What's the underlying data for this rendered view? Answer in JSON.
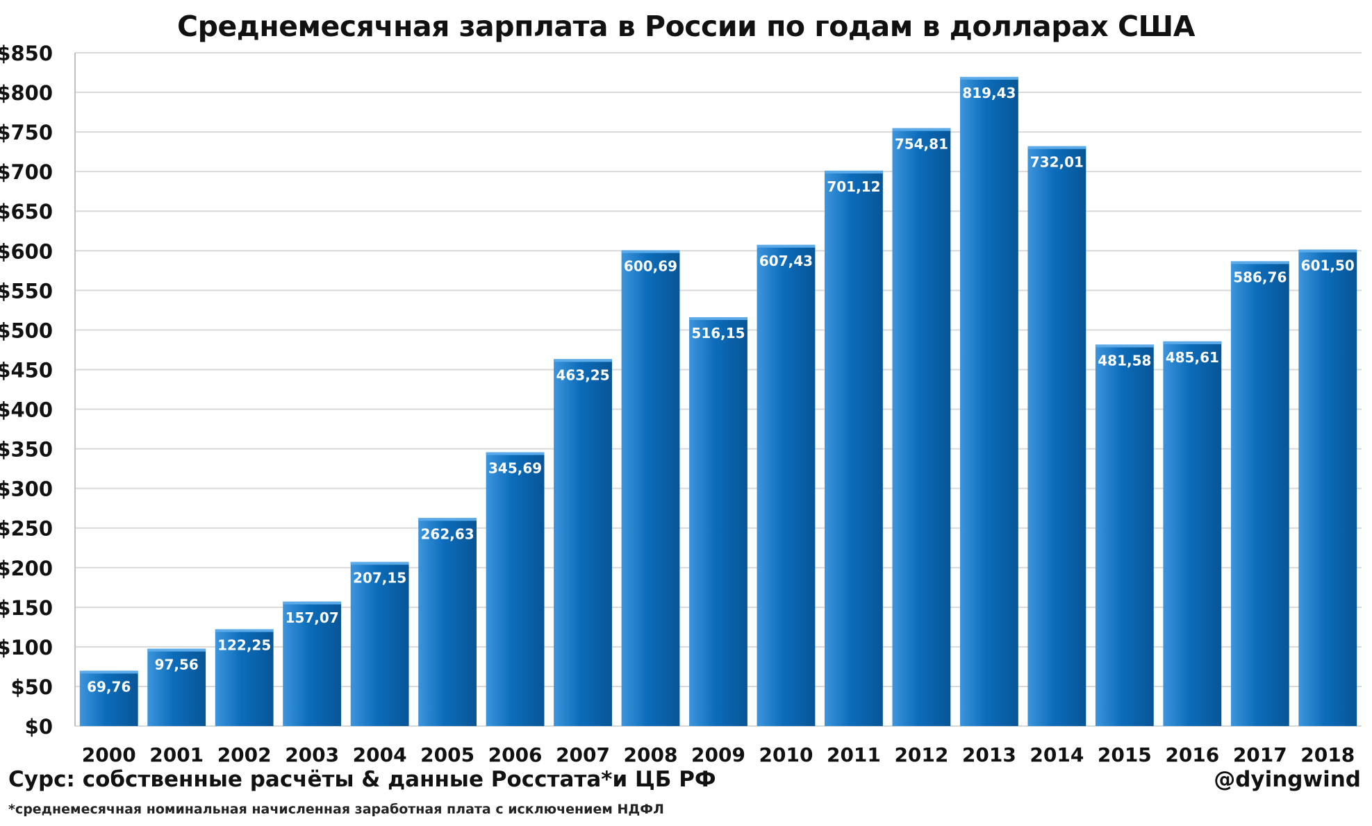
{
  "chart_data": {
    "type": "bar",
    "title": "Среднемесячная зарплата в России по годам в долларах США",
    "xlabel": "",
    "ylabel": "",
    "categories": [
      "2000",
      "2001",
      "2002",
      "2003",
      "2004",
      "2005",
      "2006",
      "2007",
      "2008",
      "2009",
      "2010",
      "2011",
      "2012",
      "2013",
      "2014",
      "2015",
      "2016",
      "2017",
      "2018"
    ],
    "values": [
      69.76,
      97.56,
      122.25,
      157.07,
      207.15,
      262.63,
      345.69,
      463.25,
      600.69,
      516.15,
      607.43,
      701.12,
      754.81,
      819.43,
      732.01,
      481.58,
      485.61,
      586.76,
      601.5
    ],
    "value_labels": [
      "69,76",
      "97,56",
      "122,25",
      "157,07",
      "207,15",
      "262,63",
      "345,69",
      "463,25",
      "600,69",
      "516,15",
      "607,43",
      "701,12",
      "754,81",
      "819,43",
      "732,01",
      "481,58",
      "485,61",
      "586,76",
      "601,50"
    ],
    "ylim": [
      0,
      850
    ],
    "yticks": [
      0,
      50,
      100,
      150,
      200,
      250,
      300,
      350,
      400,
      450,
      500,
      550,
      600,
      650,
      700,
      750,
      800,
      850
    ],
    "ytick_labels": [
      "$0",
      "$50",
      "$100",
      "$150",
      "$200",
      "$250",
      "$300",
      "$350",
      "$400",
      "$450",
      "$500",
      "$550",
      "$600",
      "$650",
      "$700",
      "$750",
      "$800",
      "$850"
    ],
    "grid": true,
    "legend": "none",
    "colors": {
      "bar": "#0c6cba",
      "bar_light": "#3d95dc",
      "bar_dark": "#075596",
      "grid": "#d9d9d9",
      "label": "#ffffff"
    }
  },
  "footer": {
    "source": "Сурс: собственные расчёты & данные Росстата*и ЦБ РФ",
    "author": "@dyingwind",
    "footnote": "*среднемесячная номинальная начисленная заработная плата с исключением НДФЛ"
  }
}
